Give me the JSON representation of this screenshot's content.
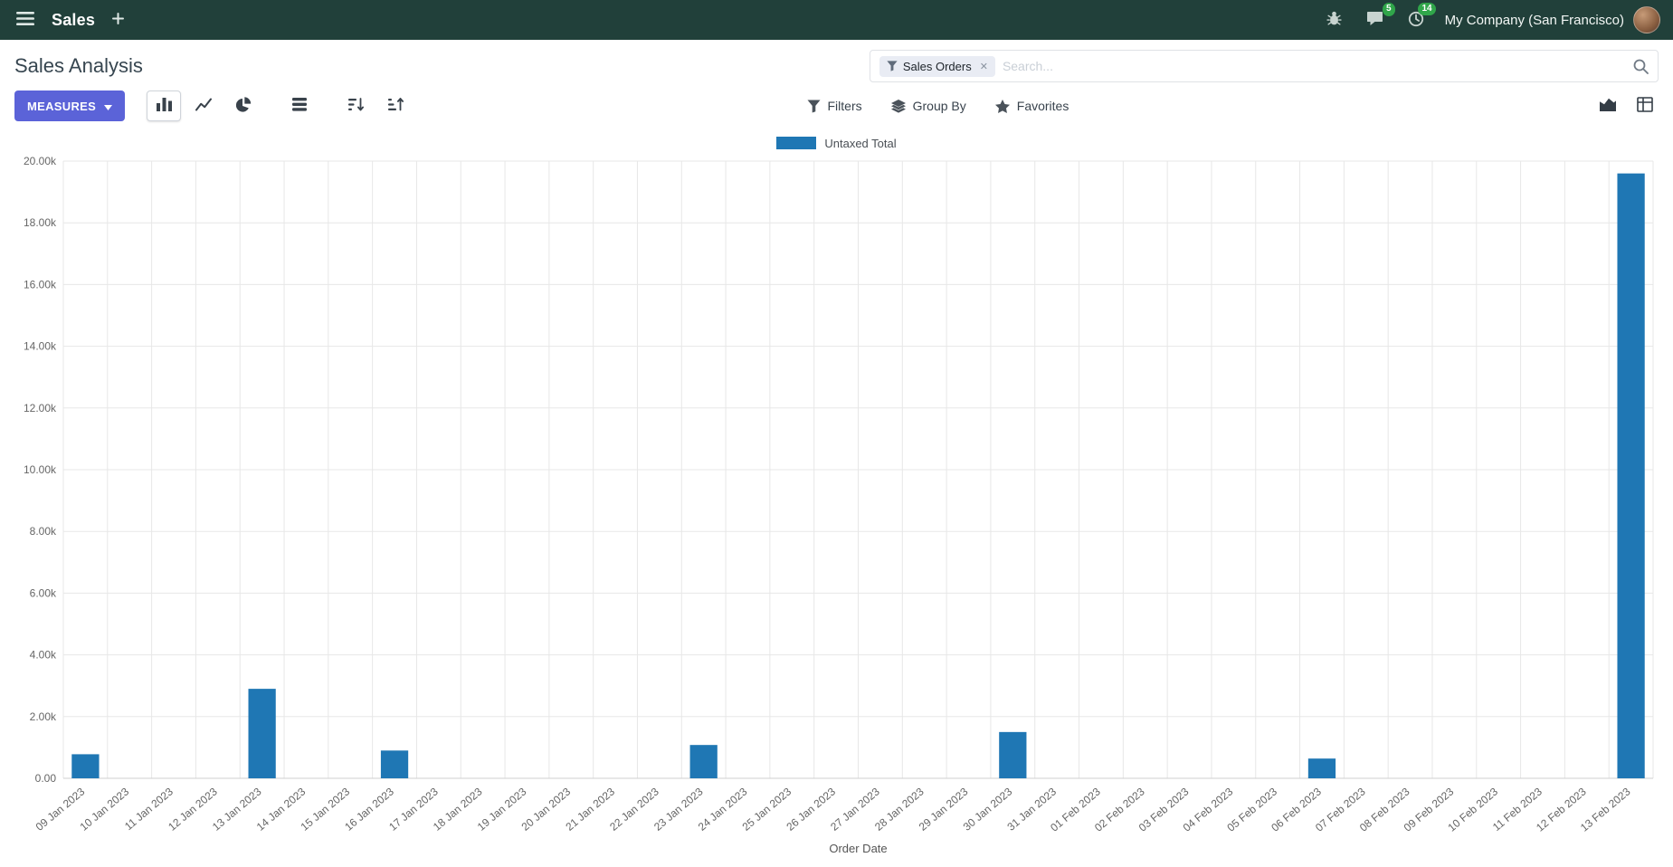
{
  "navbar": {
    "app_name": "Sales",
    "company": "My Company (San Francisco)",
    "messages_badge": "5",
    "activities_badge": "14"
  },
  "control_panel": {
    "title": "Sales Analysis",
    "search": {
      "facet_label": "Sales Orders",
      "facet_remove": "✕",
      "placeholder": "Search..."
    },
    "measures_label": "MEASURES",
    "filters_label": "Filters",
    "group_by_label": "Group By",
    "favorites_label": "Favorites"
  },
  "colors": {
    "navbar_bg": "#21403a",
    "primary_button": "#5b63d8",
    "badge_green": "#30a64a",
    "bar_blue": "#1f77b4",
    "gridline": "#e7e7e7"
  },
  "chart_data": {
    "type": "bar",
    "title": "",
    "xlabel": "Order Date",
    "ylabel": "",
    "ylim": [
      0,
      20000
    ],
    "ytick_step": 2000,
    "ytick_labels": [
      "0.00",
      "2.00k",
      "4.00k",
      "6.00k",
      "8.00k",
      "10.00k",
      "12.00k",
      "14.00k",
      "16.00k",
      "18.00k",
      "20.00k"
    ],
    "grid": true,
    "legend_position": "top",
    "categories": [
      "09 Jan 2023",
      "10 Jan 2023",
      "11 Jan 2023",
      "12 Jan 2023",
      "13 Jan 2023",
      "14 Jan 2023",
      "15 Jan 2023",
      "16 Jan 2023",
      "17 Jan 2023",
      "18 Jan 2023",
      "19 Jan 2023",
      "20 Jan 2023",
      "21 Jan 2023",
      "22 Jan 2023",
      "23 Jan 2023",
      "24 Jan 2023",
      "25 Jan 2023",
      "26 Jan 2023",
      "27 Jan 2023",
      "28 Jan 2023",
      "29 Jan 2023",
      "30 Jan 2023",
      "31 Jan 2023",
      "01 Feb 2023",
      "02 Feb 2023",
      "03 Feb 2023",
      "04 Feb 2023",
      "05 Feb 2023",
      "06 Feb 2023",
      "07 Feb 2023",
      "08 Feb 2023",
      "09 Feb 2023",
      "10 Feb 2023",
      "11 Feb 2023",
      "12 Feb 2023",
      "13 Feb 2023"
    ],
    "series": [
      {
        "name": "Untaxed Total",
        "color": "#1f77b4",
        "values": [
          780,
          0,
          0,
          0,
          2900,
          0,
          0,
          900,
          0,
          0,
          0,
          0,
          0,
          0,
          1080,
          0,
          0,
          0,
          0,
          0,
          0,
          1500,
          0,
          0,
          0,
          0,
          0,
          0,
          640,
          0,
          0,
          0,
          0,
          0,
          0,
          19600
        ]
      }
    ]
  }
}
